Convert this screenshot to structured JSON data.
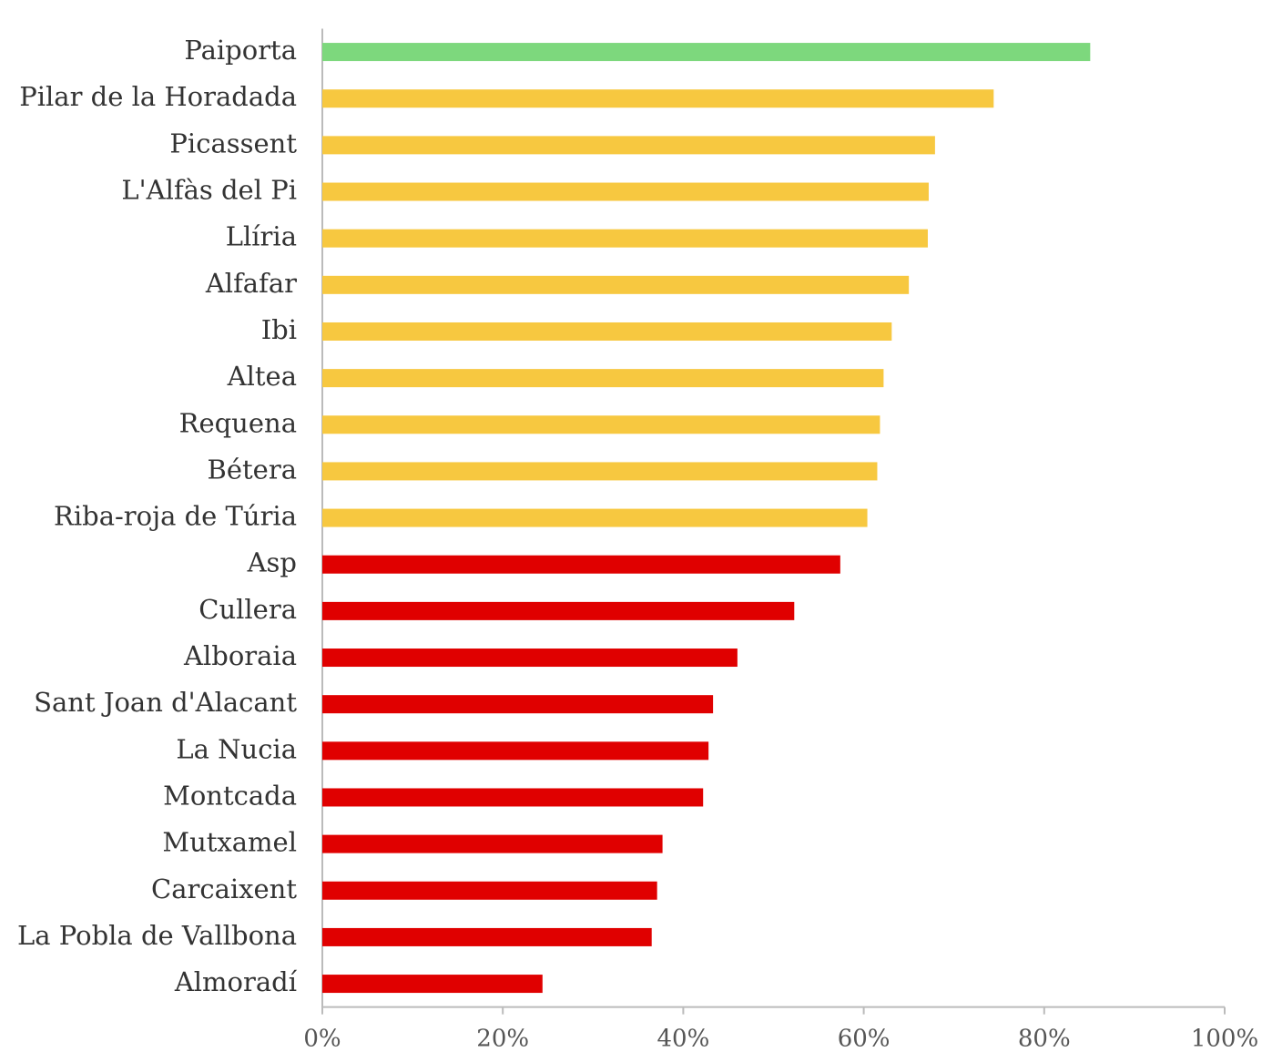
{
  "chart_data": {
    "type": "barh",
    "categories": [
      "Paiporta",
      "Pilar de la Horadada",
      "Picassent",
      "L'Alfàs del Pi",
      "Llíria",
      "Alfafar",
      "Ibi",
      "Altea",
      "Requena",
      "Bétera",
      "Riba-roja de Túria",
      "Asp",
      "Cullera",
      "Alboraia",
      "Sant Joan d'Alacant",
      "La Nucia",
      "Montcada",
      "Mutxamel",
      "Carcaixent",
      "La Pobla de Vallbona",
      "Almoradí"
    ],
    "values": [
      85.1,
      74.4,
      67.9,
      67.2,
      67.1,
      65.0,
      63.1,
      62.2,
      61.8,
      61.5,
      60.4,
      57.4,
      52.3,
      46.0,
      43.3,
      42.8,
      42.2,
      37.7,
      37.1,
      36.5,
      24.4
    ],
    "colors": [
      "#7dd87d",
      "#f7c840",
      "#f7c840",
      "#f7c840",
      "#f7c840",
      "#f7c840",
      "#f7c840",
      "#f7c840",
      "#f7c840",
      "#f7c840",
      "#f7c840",
      "#e00000",
      "#e00000",
      "#e00000",
      "#e00000",
      "#e00000",
      "#e00000",
      "#e00000",
      "#e00000",
      "#e00000",
      "#e00000"
    ],
    "xlim": [
      0,
      100
    ],
    "xticks": [
      {
        "value": 0,
        "label": "0%"
      },
      {
        "value": 20,
        "label": "20%"
      },
      {
        "value": 40,
        "label": "40%"
      },
      {
        "value": 60,
        "label": "60%"
      },
      {
        "value": 80,
        "label": "80%"
      },
      {
        "value": 100,
        "label": "100%"
      }
    ],
    "grid": false
  }
}
